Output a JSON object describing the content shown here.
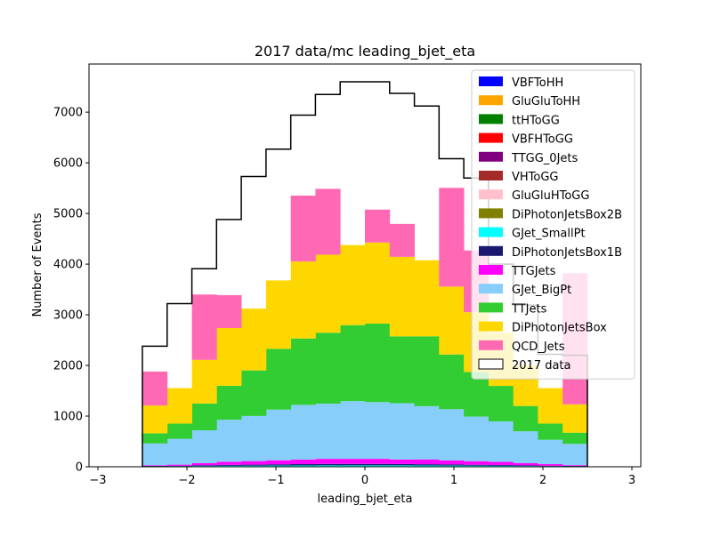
{
  "chart_data": {
    "type": "histogram",
    "title": "2017 data/mc leading_bjet_eta",
    "xlabel": "leading_bjet_eta",
    "ylabel": "Number of Events",
    "xlim": [
      -3.1,
      3.1
    ],
    "ylim": [
      0,
      7950
    ],
    "xticks": [
      -3,
      -2,
      -1,
      0,
      1,
      2,
      3
    ],
    "yticks": [
      0,
      1000,
      2000,
      3000,
      4000,
      5000,
      6000,
      7000
    ],
    "bin_edges": [
      -2.5,
      -2.222,
      -1.944,
      -1.667,
      -1.389,
      -1.111,
      -0.833,
      -0.556,
      -0.278,
      0.0,
      0.278,
      0.556,
      0.833,
      1.111,
      1.389,
      1.667,
      1.944,
      2.222,
      2.5
    ],
    "legend_position": "upper right",
    "stack_order": [
      "GJet_SmallPt",
      "DiPhotonJetsBox1B",
      "TTGJets",
      "GJet_BigPt",
      "TTJets",
      "DiPhotonJetsBox",
      "QCD_Jets"
    ],
    "series": [
      {
        "name": "VBFToHH",
        "color": "#0000ff",
        "values": [
          0,
          0,
          0,
          0,
          0,
          0,
          0,
          0,
          0,
          0,
          0,
          0,
          0,
          0,
          0,
          0,
          0,
          0
        ]
      },
      {
        "name": "GluGluToHH",
        "color": "#ffa500",
        "values": [
          0,
          0,
          0,
          0,
          0,
          0,
          0,
          0,
          0,
          0,
          0,
          0,
          0,
          0,
          0,
          0,
          0,
          0
        ]
      },
      {
        "name": "ttHToGG",
        "color": "#008000",
        "values": [
          0,
          0,
          0,
          0,
          0,
          0,
          0,
          0,
          0,
          0,
          0,
          0,
          0,
          0,
          0,
          0,
          0,
          0
        ]
      },
      {
        "name": "VBFHToGG",
        "color": "#ff0000",
        "values": [
          0,
          0,
          0,
          0,
          0,
          0,
          0,
          0,
          0,
          0,
          0,
          0,
          0,
          0,
          0,
          0,
          0,
          0
        ]
      },
      {
        "name": "TTGG_0Jets",
        "color": "#800080",
        "values": [
          0,
          0,
          0,
          0,
          0,
          0,
          0,
          0,
          0,
          0,
          0,
          0,
          0,
          0,
          0,
          0,
          0,
          0
        ]
      },
      {
        "name": "VHToGG",
        "color": "#a52a2a",
        "values": [
          0,
          0,
          0,
          0,
          0,
          0,
          0,
          0,
          0,
          0,
          0,
          0,
          0,
          0,
          0,
          0,
          0,
          0
        ]
      },
      {
        "name": "GluGluHToGG",
        "color": "#ffc0cb",
        "values": [
          0,
          0,
          0,
          0,
          0,
          0,
          0,
          0,
          0,
          0,
          0,
          0,
          0,
          0,
          0,
          0,
          0,
          0
        ]
      },
      {
        "name": "DiPhotonJetsBox2B",
        "color": "#808000",
        "values": [
          0,
          0,
          0,
          0,
          0,
          0,
          0,
          0,
          0,
          0,
          0,
          0,
          0,
          0,
          0,
          0,
          0,
          0
        ]
      },
      {
        "name": "GJet_SmallPt",
        "color": "#00ffff",
        "values": [
          10,
          12,
          16,
          20,
          22,
          24,
          26,
          28,
          28,
          28,
          28,
          26,
          24,
          22,
          20,
          16,
          12,
          10
        ]
      },
      {
        "name": "DiPhotonJetsBox1B",
        "color": "#191970",
        "values": [
          8,
          10,
          14,
          18,
          20,
          24,
          26,
          28,
          28,
          28,
          26,
          24,
          22,
          18,
          16,
          12,
          10,
          8
        ]
      },
      {
        "name": "TTGJets",
        "color": "#ff00ff",
        "values": [
          12,
          20,
          40,
          60,
          70,
          80,
          90,
          100,
          100,
          100,
          90,
          95,
          80,
          70,
          60,
          42,
          30,
          14
        ]
      },
      {
        "name": "GJet_BigPt",
        "color": "#87cefa",
        "values": [
          430,
          510,
          650,
          830,
          890,
          1000,
          1080,
          1090,
          1140,
          1120,
          1110,
          1050,
          1010,
          880,
          800,
          630,
          480,
          420
        ]
      },
      {
        "name": "TTJets",
        "color": "#32cd32",
        "values": [
          200,
          300,
          530,
          670,
          900,
          1200,
          1310,
          1400,
          1500,
          1550,
          1320,
          1380,
          1080,
          880,
          700,
          500,
          320,
          220
        ]
      },
      {
        "name": "DiPhotonJetsBox",
        "color": "#ffd700",
        "values": [
          550,
          700,
          860,
          1140,
          1220,
          1350,
          1520,
          1540,
          1580,
          1600,
          1570,
          1500,
          1340,
          1180,
          1050,
          800,
          700,
          560
        ]
      },
      {
        "name": "QCD_Jets",
        "color": "#ff69b4",
        "values": [
          670,
          0,
          1290,
          650,
          0,
          0,
          1300,
          1300,
          0,
          650,
          650,
          0,
          1950,
          1220,
          0,
          0,
          0,
          2590
        ]
      }
    ],
    "data": {
      "name": "2017 data",
      "values": [
        2380,
        3220,
        3910,
        4880,
        5730,
        6270,
        6940,
        7350,
        7600,
        7600,
        7370,
        7120,
        6080,
        5700,
        4000,
        3190,
        2220,
        2200
      ]
    }
  }
}
